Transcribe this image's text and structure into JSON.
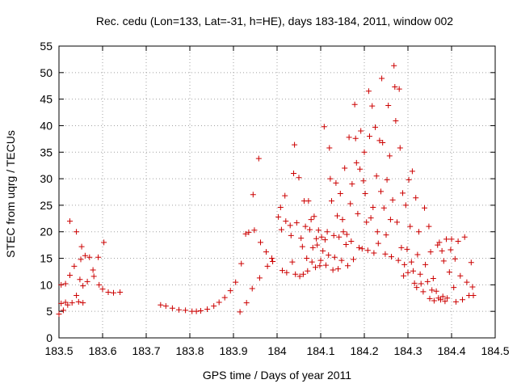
{
  "chart_data": {
    "type": "scatter",
    "title": "Rec. cedu (Lon=133, Lat=-31, h=HE), days 183-184, 2011, window 002",
    "xlabel": "GPS time / Days of year 2011",
    "ylabel": "STEC from uqrg / TECUs",
    "xlim": [
      183.5,
      184.5
    ],
    "ylim": [
      0,
      55
    ],
    "xticks": [
      183.5,
      183.6,
      183.7,
      183.8,
      183.9,
      184.0,
      184.1,
      184.2,
      184.3,
      184.4,
      184.5
    ],
    "xtick_labels": [
      "183.5",
      "183.6",
      "183.7",
      "183.8",
      "183.9",
      "184",
      "184.1",
      "184.2",
      "184.3",
      "184.4",
      "184.5"
    ],
    "yticks": [
      0,
      5,
      10,
      15,
      20,
      25,
      30,
      35,
      40,
      45,
      50,
      55
    ],
    "ytick_labels": [
      "0",
      "5",
      "10",
      "15",
      "20",
      "25",
      "30",
      "35",
      "40",
      "45",
      "50",
      "55"
    ],
    "grid": true,
    "marker": "+",
    "color": "#cc0000",
    "series": [
      {
        "name": "STEC",
        "points": [
          [
            183.5,
            4.5
          ],
          [
            183.505,
            6.5
          ],
          [
            183.505,
            10.0
          ],
          [
            183.51,
            5.2
          ],
          [
            183.515,
            6.7
          ],
          [
            183.515,
            10.2
          ],
          [
            183.52,
            6.2
          ],
          [
            183.525,
            22.0
          ],
          [
            183.525,
            11.8
          ],
          [
            183.53,
            6.6
          ],
          [
            183.535,
            13.5
          ],
          [
            183.54,
            20.0
          ],
          [
            183.54,
            8.0
          ],
          [
            183.545,
            6.8
          ],
          [
            183.548,
            11.0
          ],
          [
            183.55,
            14.8
          ],
          [
            183.552,
            17.2
          ],
          [
            183.555,
            6.6
          ],
          [
            183.555,
            9.8
          ],
          [
            183.56,
            15.5
          ],
          [
            183.565,
            10.6
          ],
          [
            183.57,
            15.2
          ],
          [
            183.578,
            12.8
          ],
          [
            183.58,
            11.6
          ],
          [
            183.59,
            15.2
          ],
          [
            183.592,
            10.0
          ],
          [
            183.6,
            9.2
          ],
          [
            183.603,
            18.0
          ],
          [
            183.613,
            8.6
          ],
          [
            183.625,
            8.5
          ],
          [
            183.64,
            8.6
          ],
          [
            183.733,
            6.2
          ],
          [
            183.745,
            6.0
          ],
          [
            183.76,
            5.6
          ],
          [
            183.775,
            5.3
          ],
          [
            183.79,
            5.2
          ],
          [
            183.805,
            5.0
          ],
          [
            183.815,
            5.0
          ],
          [
            183.825,
            5.1
          ],
          [
            183.84,
            5.4
          ],
          [
            183.855,
            6.0
          ],
          [
            183.867,
            6.7
          ],
          [
            183.88,
            7.6
          ],
          [
            183.893,
            8.9
          ],
          [
            183.905,
            10.5
          ],
          [
            183.915,
            4.9
          ],
          [
            183.918,
            14.0
          ],
          [
            183.928,
            19.6
          ],
          [
            183.93,
            6.6
          ],
          [
            183.935,
            19.9
          ],
          [
            183.943,
            9.3
          ],
          [
            183.945,
            27.0
          ],
          [
            183.948,
            20.3
          ],
          [
            183.958,
            33.8
          ],
          [
            183.96,
            11.3
          ],
          [
            183.962,
            18.0
          ],
          [
            183.975,
            16.2
          ],
          [
            183.978,
            13.5
          ],
          [
            183.988,
            15.0
          ],
          [
            183.99,
            14.4
          ],
          [
            184.003,
            22.8
          ],
          [
            184.008,
            24.6
          ],
          [
            184.01,
            20.4
          ],
          [
            184.012,
            12.7
          ],
          [
            184.018,
            26.8
          ],
          [
            184.02,
            22.0
          ],
          [
            184.022,
            12.3
          ],
          [
            184.03,
            21.2
          ],
          [
            184.032,
            19.3
          ],
          [
            184.035,
            14.3
          ],
          [
            184.038,
            31.0
          ],
          [
            184.04,
            36.4
          ],
          [
            184.042,
            12.0
          ],
          [
            184.045,
            21.7
          ],
          [
            184.05,
            30.2
          ],
          [
            184.052,
            11.6
          ],
          [
            184.055,
            18.8
          ],
          [
            184.058,
            17.2
          ],
          [
            184.06,
            12.0
          ],
          [
            184.062,
            25.8
          ],
          [
            184.065,
            21.0
          ],
          [
            184.068,
            15.0
          ],
          [
            184.07,
            12.6
          ],
          [
            184.072,
            25.8
          ],
          [
            184.075,
            20.4
          ],
          [
            184.078,
            22.3
          ],
          [
            184.08,
            14.3
          ],
          [
            184.082,
            17.0
          ],
          [
            184.085,
            22.9
          ],
          [
            184.088,
            13.3
          ],
          [
            184.09,
            18.7
          ],
          [
            184.092,
            17.5
          ],
          [
            184.095,
            20.3
          ],
          [
            184.098,
            13.6
          ],
          [
            184.1,
            14.6
          ],
          [
            184.102,
            19.0
          ],
          [
            184.105,
            16.4
          ],
          [
            184.108,
            39.8
          ],
          [
            184.11,
            18.5
          ],
          [
            184.112,
            13.7
          ],
          [
            184.115,
            20.0
          ],
          [
            184.118,
            15.6
          ],
          [
            184.12,
            35.8
          ],
          [
            184.122,
            30.0
          ],
          [
            184.125,
            25.8
          ],
          [
            184.128,
            12.8
          ],
          [
            184.13,
            19.3
          ],
          [
            184.132,
            15.2
          ],
          [
            184.135,
            29.2
          ],
          [
            184.138,
            23.0
          ],
          [
            184.14,
            13.0
          ],
          [
            184.142,
            19.0
          ],
          [
            184.145,
            27.2
          ],
          [
            184.148,
            14.6
          ],
          [
            184.15,
            22.3
          ],
          [
            184.152,
            20.0
          ],
          [
            184.155,
            32.0
          ],
          [
            184.158,
            17.6
          ],
          [
            184.16,
            19.5
          ],
          [
            184.162,
            13.6
          ],
          [
            184.165,
            37.8
          ],
          [
            184.168,
            25.3
          ],
          [
            184.17,
            18.2
          ],
          [
            184.172,
            29.0
          ],
          [
            184.175,
            14.8
          ],
          [
            184.178,
            44.0
          ],
          [
            184.18,
            37.6
          ],
          [
            184.182,
            33.0
          ],
          [
            184.185,
            23.4
          ],
          [
            184.188,
            17.0
          ],
          [
            184.19,
            31.8
          ],
          [
            184.192,
            39.0
          ],
          [
            184.195,
            16.8
          ],
          [
            184.198,
            29.6
          ],
          [
            184.2,
            35.0
          ],
          [
            184.202,
            27.2
          ],
          [
            184.205,
            21.8
          ],
          [
            184.208,
            16.5
          ],
          [
            184.21,
            46.5
          ],
          [
            184.212,
            38.0
          ],
          [
            184.215,
            22.6
          ],
          [
            184.218,
            43.7
          ],
          [
            184.22,
            24.6
          ],
          [
            184.222,
            16.0
          ],
          [
            184.225,
            39.7
          ],
          [
            184.228,
            30.5
          ],
          [
            184.23,
            20.0
          ],
          [
            184.232,
            17.8
          ],
          [
            184.235,
            37.2
          ],
          [
            184.238,
            27.6
          ],
          [
            184.24,
            48.9
          ],
          [
            184.242,
            36.8
          ],
          [
            184.245,
            24.5
          ],
          [
            184.248,
            15.8
          ],
          [
            184.25,
            19.4
          ],
          [
            184.252,
            29.8
          ],
          [
            184.255,
            43.8
          ],
          [
            184.258,
            34.3
          ],
          [
            184.26,
            22.3
          ],
          [
            184.262,
            15.3
          ],
          [
            184.265,
            26.0
          ],
          [
            184.268,
            51.3
          ],
          [
            184.27,
            47.3
          ],
          [
            184.272,
            40.9
          ],
          [
            184.275,
            21.8
          ],
          [
            184.278,
            14.6
          ],
          [
            184.28,
            46.9
          ],
          [
            184.282,
            35.8
          ],
          [
            184.285,
            17.0
          ],
          [
            184.288,
            27.3
          ],
          [
            184.29,
            11.7
          ],
          [
            184.292,
            13.8
          ],
          [
            184.295,
            25.0
          ],
          [
            184.298,
            16.7
          ],
          [
            184.3,
            12.3
          ],
          [
            184.302,
            29.8
          ],
          [
            184.305,
            21.0
          ],
          [
            184.308,
            14.3
          ],
          [
            184.31,
            31.4
          ],
          [
            184.312,
            12.6
          ],
          [
            184.315,
            10.3
          ],
          [
            184.318,
            26.4
          ],
          [
            184.32,
            9.5
          ],
          [
            184.322,
            15.7
          ],
          [
            184.325,
            20.0
          ],
          [
            184.328,
            12.0
          ],
          [
            184.33,
            10.2
          ],
          [
            184.335,
            8.7
          ],
          [
            184.338,
            24.5
          ],
          [
            184.34,
            13.8
          ],
          [
            184.345,
            10.6
          ],
          [
            184.348,
            21.0
          ],
          [
            184.35,
            7.4
          ],
          [
            184.352,
            16.2
          ],
          [
            184.355,
            9.0
          ],
          [
            184.358,
            11.2
          ],
          [
            184.36,
            7.0
          ],
          [
            184.365,
            8.8
          ],
          [
            184.368,
            17.5
          ],
          [
            184.37,
            7.5
          ],
          [
            184.372,
            18.0
          ],
          [
            184.375,
            7.2
          ],
          [
            184.378,
            16.4
          ],
          [
            184.38,
            7.8
          ],
          [
            184.382,
            14.5
          ],
          [
            184.385,
            6.9
          ],
          [
            184.388,
            18.6
          ],
          [
            184.39,
            7.5
          ],
          [
            184.395,
            12.4
          ],
          [
            184.398,
            16.6
          ],
          [
            184.4,
            18.6
          ],
          [
            184.405,
            9.5
          ],
          [
            184.408,
            14.9
          ],
          [
            184.41,
            6.8
          ],
          [
            184.415,
            18.2
          ],
          [
            184.42,
            11.7
          ],
          [
            184.425,
            7.2
          ],
          [
            184.43,
            19.0
          ],
          [
            184.435,
            10.5
          ],
          [
            184.44,
            8.0
          ],
          [
            184.445,
            14.2
          ],
          [
            184.448,
            9.6
          ],
          [
            184.45,
            8.0
          ]
        ]
      }
    ]
  }
}
